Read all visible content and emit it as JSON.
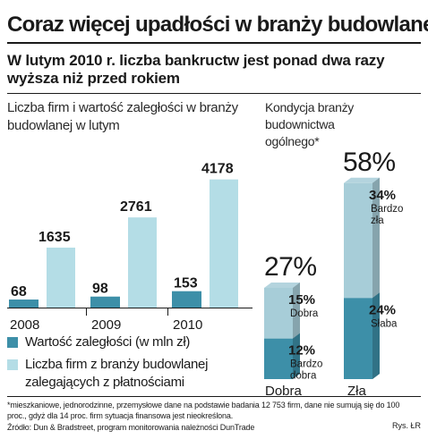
{
  "headline": "Coraz więcej upadłości w branży budowlanej",
  "subheadline": "W lutym 2010 r. liczba bankructw jest ponad dwa razy wyższa niż przed rokiem",
  "chart_data": [
    {
      "type": "bar",
      "title": "Liczba firm i wartość zaległości w branży budowlanej w lutym",
      "categories": [
        "2008",
        "2009",
        "2010"
      ],
      "series": [
        {
          "name": "Wartość zaległości (w mln zł)",
          "values": [
            68,
            98,
            153
          ],
          "color": "#3d8fa8"
        },
        {
          "name": "Liczba firm z branży budowlanej zalegających z płatnościami",
          "values": [
            1635,
            2761,
            4178
          ],
          "color": "#b4dde6"
        }
      ],
      "ylim": [
        0,
        4400
      ],
      "grid": false,
      "legend": "bottom"
    },
    {
      "type": "bar",
      "stacked": true,
      "title": "Kondycja branży budownictwa ogólnego*",
      "categories": [
        "Dobra",
        "Zła"
      ],
      "totals": [
        "27%",
        "58%"
      ],
      "series": [
        {
          "name": "Dobra",
          "category": "Dobra",
          "segments": [
            {
              "label": "15%",
              "name": "Dobra",
              "value": 15,
              "color": "#a7cdd8"
            },
            {
              "label": "12%",
              "name": "Bardzo dobra",
              "value": 12,
              "color": "#3d8fa8"
            }
          ]
        },
        {
          "name": "Zła",
          "category": "Zła",
          "segments": [
            {
              "label": "34%",
              "name": "Bardzo zła",
              "value": 34,
              "color": "#a7cdd8"
            },
            {
              "label": "24%",
              "name": "Słaba",
              "value": 24,
              "color": "#3d8fa8"
            }
          ]
        }
      ],
      "ylim": [
        0,
        60
      ]
    }
  ],
  "footnote": "*mieszkaniowe, jednorodzinne, przemysłowe dane na podstawie badania 12 753 firm, dane nie sumują się do 100 proc., gdyż dla 14 proc. firm sytuacja finansowa jest nieokreślona.",
  "source": "Źródło: Dun & Bradstreet, program monitorowania należności DunTrade",
  "credit": "Rys. ŁR"
}
